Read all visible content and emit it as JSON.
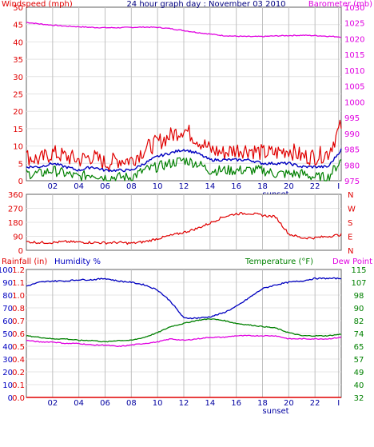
{
  "chart_data": [
    {
      "type": "line",
      "title": "24 hour graph day : November 03 2010",
      "left_label": "Windspeed (mph)",
      "right_label": "Barometer (mb)",
      "ylim": [
        0,
        50
      ],
      "y2lim": [
        975,
        1030
      ],
      "y_ticks": [
        "0",
        "5",
        "10",
        "15",
        "20",
        "25",
        "30",
        "35",
        "40",
        "45",
        "50"
      ],
      "y2_ticks": [
        "975",
        "980",
        "985",
        "990",
        "995",
        "1000",
        "1005",
        "1010",
        "1015",
        "1020",
        "1025",
        "1030"
      ],
      "x_ticks": [
        "02",
        "04",
        "06",
        "08",
        "10",
        "12",
        "14",
        "16",
        "18",
        "20",
        "22",
        "I"
      ],
      "x_note": "sunset",
      "grid": true,
      "colors": {
        "gust": "#e00000",
        "avg": "#0000c0",
        "wind": "#008000",
        "baro": "#e000e0",
        "left_axis": "#e00000",
        "right_axis": "#e000e0"
      },
      "series": [
        {
          "name": "barometer",
          "axis": "right",
          "x": [
            0,
            1,
            2,
            3,
            4,
            5,
            6,
            7,
            8,
            9,
            10,
            11,
            12,
            13,
            14,
            15,
            16,
            17,
            18,
            19,
            20,
            21,
            22,
            23,
            24
          ],
          "values": [
            1025.2,
            1024.7,
            1024.3,
            1024.0,
            1023.8,
            1023.6,
            1023.5,
            1023.5,
            1023.6,
            1023.7,
            1023.6,
            1023.2,
            1022.6,
            1022.0,
            1021.5,
            1021.0,
            1020.8,
            1020.7,
            1020.7,
            1020.9,
            1021.0,
            1021.1,
            1021.0,
            1020.8,
            1020.6
          ]
        },
        {
          "name": "gust",
          "axis": "left",
          "x": [
            0,
            1,
            2,
            3,
            4,
            5,
            6,
            7,
            8,
            9,
            10,
            11,
            12,
            13,
            14,
            15,
            16,
            17,
            18,
            19,
            20,
            21,
            22,
            23,
            24
          ],
          "values": [
            7,
            6,
            8,
            7,
            6,
            7,
            5,
            6,
            6,
            9,
            11,
            13,
            15,
            12,
            9,
            8,
            9,
            9,
            8,
            8,
            9,
            7,
            7,
            8,
            16
          ]
        },
        {
          "name": "average",
          "axis": "left",
          "x": [
            0,
            1,
            2,
            3,
            4,
            5,
            6,
            7,
            8,
            9,
            10,
            11,
            12,
            13,
            14,
            15,
            16,
            17,
            18,
            19,
            20,
            21,
            22,
            23,
            24
          ],
          "values": [
            4,
            4,
            5,
            4,
            3,
            4,
            3,
            3,
            3,
            5,
            7,
            8,
            9,
            8,
            6,
            6,
            6,
            6,
            5,
            5,
            5,
            4,
            4,
            4,
            9
          ]
        },
        {
          "name": "wind",
          "axis": "left",
          "x": [
            0,
            1,
            2,
            3,
            4,
            5,
            6,
            7,
            8,
            9,
            10,
            11,
            12,
            13,
            14,
            15,
            16,
            17,
            18,
            19,
            20,
            21,
            22,
            23,
            24
          ],
          "values": [
            2,
            2,
            3,
            2,
            1,
            2,
            1,
            1,
            1,
            3,
            4,
            5,
            6,
            5,
            3,
            3,
            3,
            3,
            3,
            2,
            2,
            2,
            1,
            1,
            6
          ]
        }
      ]
    },
    {
      "type": "line",
      "ylim": [
        0,
        360
      ],
      "y_ticks": [
        "0",
        "90",
        "180",
        "270",
        "360"
      ],
      "right_ticks": [
        "N",
        "W",
        "S",
        "E",
        "N"
      ],
      "x_ticks": [
        "02",
        "04",
        "06",
        "08",
        "10",
        "12",
        "14",
        "16",
        "18",
        "20",
        "22",
        "I"
      ],
      "grid": true,
      "colors": {
        "dir": "#e00000",
        "left_axis": "#e00000",
        "right_axis": "#e00000"
      },
      "series": [
        {
          "name": "wind direction",
          "x": [
            0,
            1,
            2,
            3,
            4,
            5,
            6,
            7,
            8,
            9,
            10,
            11,
            12,
            13,
            14,
            15,
            16,
            17,
            18,
            19,
            20,
            21,
            22,
            23,
            24
          ],
          "values": [
            55,
            50,
            50,
            55,
            52,
            50,
            48,
            50,
            45,
            55,
            75,
            95,
            115,
            140,
            175,
            215,
            235,
            238,
            225,
            215,
            105,
            80,
            80,
            90,
            100
          ]
        }
      ]
    },
    {
      "type": "line",
      "left_label_1": "Rainfall (in)",
      "left_label_2": "Humidity %",
      "right_label_1": "Temperature (°F)",
      "right_label_2": "Dew Point",
      "ylim": [
        0,
        100
      ],
      "rain_lim": [
        0,
        1.2
      ],
      "y2lim": [
        32,
        115
      ],
      "humidity_ticks": [
        "0",
        "10",
        "20",
        "30",
        "40",
        "50",
        "60",
        "70",
        "80",
        "90",
        "100"
      ],
      "rain_ticks": [
        "0.0",
        "0.1",
        "0.2",
        "0.4",
        "0.5",
        "0.6",
        "0.7",
        "0.8",
        "1.0",
        "1.1",
        "1.2"
      ],
      "y2_ticks": [
        "32",
        "40",
        "49",
        "57",
        "65",
        "74",
        "82",
        "90",
        "98",
        "107",
        "115"
      ],
      "x_ticks": [
        "02",
        "04",
        "06",
        "08",
        "10",
        "12",
        "14",
        "16",
        "18",
        "20",
        "22",
        "I"
      ],
      "x_note": "sunset",
      "grid": true,
      "colors": {
        "humidity": "#0000c0",
        "temp": "#008000",
        "dew": "#e000e0",
        "rain": "#e00000",
        "rain_axis": "#e00000",
        "humidity_axis": "#0000c0",
        "right_axis": "#008000",
        "dew_label": "#e000e0"
      },
      "series": [
        {
          "name": "humidity",
          "axis": "left",
          "x": [
            0,
            1,
            2,
            3,
            4,
            5,
            6,
            7,
            8,
            9,
            10,
            11,
            12,
            13,
            14,
            15,
            16,
            17,
            18,
            19,
            20,
            21,
            22,
            23,
            24
          ],
          "values": [
            87,
            90,
            91,
            91,
            92,
            92,
            93,
            91,
            90,
            88,
            84,
            75,
            62,
            62,
            63,
            66,
            71,
            78,
            85,
            88,
            90,
            91,
            93,
            93,
            93
          ]
        },
        {
          "name": "temperature",
          "axis": "right",
          "x": [
            0,
            1,
            2,
            3,
            4,
            5,
            6,
            7,
            8,
            9,
            10,
            11,
            12,
            13,
            14,
            15,
            16,
            17,
            18,
            19,
            20,
            21,
            22,
            23,
            24
          ],
          "values": [
            72,
            71,
            70,
            70,
            69,
            69,
            68,
            69,
            69,
            71,
            74,
            78,
            80,
            82,
            83,
            82,
            80,
            79,
            78,
            77,
            74,
            72,
            72,
            72,
            73
          ]
        },
        {
          "name": "dew point",
          "axis": "right",
          "x": [
            0,
            1,
            2,
            3,
            4,
            5,
            6,
            7,
            8,
            9,
            10,
            11,
            12,
            13,
            14,
            15,
            16,
            17,
            18,
            19,
            20,
            21,
            22,
            23,
            24
          ],
          "values": [
            69,
            68,
            68,
            67,
            67,
            66,
            66,
            65,
            66,
            67,
            68,
            70,
            69,
            70,
            71,
            71,
            72,
            72,
            72,
            72,
            70,
            70,
            70,
            70,
            71
          ]
        },
        {
          "name": "rainfall",
          "axis": "rain",
          "x": [
            0,
            24
          ],
          "values": [
            0,
            0
          ]
        }
      ]
    }
  ]
}
